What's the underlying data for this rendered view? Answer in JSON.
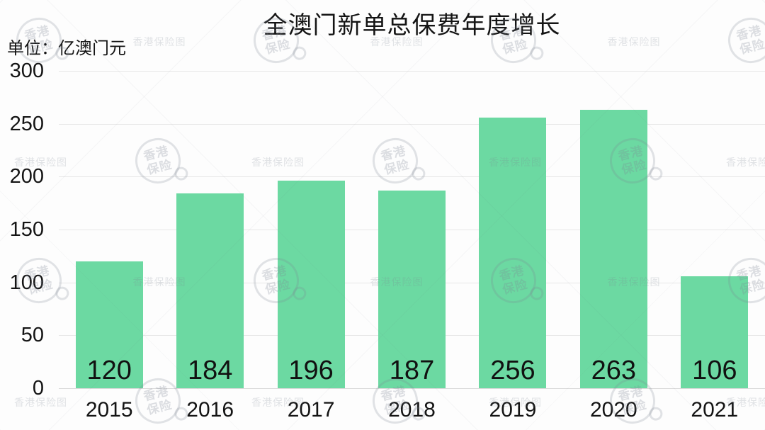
{
  "page": {
    "background": "#fdfdfd"
  },
  "header": {
    "title": "全澳门新单总保费年度增长",
    "unit_label": "单位：亿澳门元"
  },
  "watermark": {
    "stamp_top": "香港",
    "stamp_bottom": "保险",
    "small_text": "香港保险图"
  },
  "colors": {
    "bar_fill": "#6cd9a2",
    "gridline": "#e7e7e7",
    "axis_line": "#dadada",
    "label_text": "#141414",
    "watermark": "#7d8491"
  },
  "chart_data": {
    "type": "bar",
    "title": "全澳门新单总保费年度增长",
    "unit": "亿澳门元",
    "categories": [
      "2015",
      "2016",
      "2017",
      "2018",
      "2019",
      "2020",
      "2021"
    ],
    "values": [
      120,
      184,
      196,
      187,
      256,
      263,
      106
    ],
    "xlabel": "",
    "ylabel": "单位：亿澳门元",
    "ylim": [
      0,
      300
    ],
    "yticks": [
      0,
      50,
      100,
      150,
      200,
      250,
      300
    ],
    "grid": true,
    "legend": false,
    "value_label_position": "inside-bottom"
  }
}
